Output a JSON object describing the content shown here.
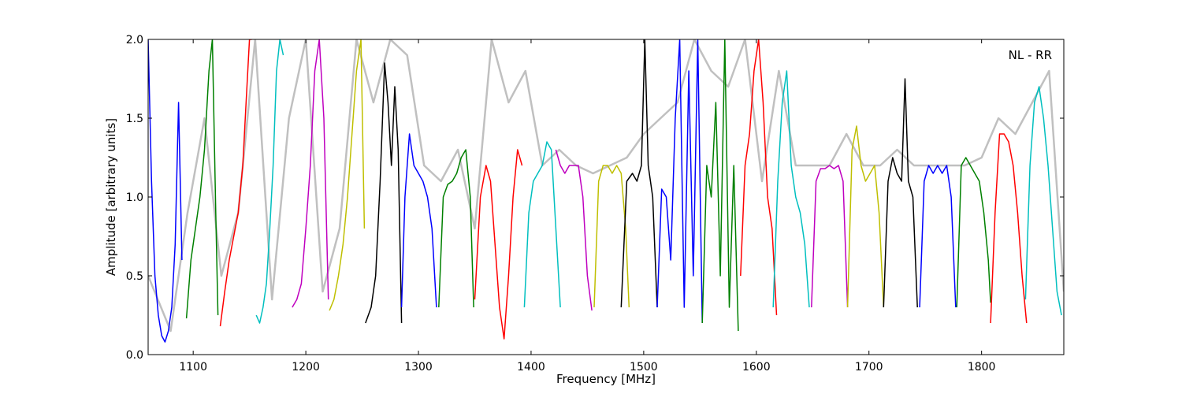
{
  "chart_data": {
    "type": "line",
    "title": "",
    "xlabel": "Frequency [MHz]",
    "ylabel": "Amplitude [arbitrary units]",
    "annotation": "NL - RR",
    "xlim": [
      1060,
      1873
    ],
    "ylim": [
      0.0,
      2.0
    ],
    "x_ticks": [
      1100,
      1200,
      1300,
      1400,
      1500,
      1600,
      1700,
      1800
    ],
    "x_tick_labels": [
      "1100",
      "1200",
      "1300",
      "1400",
      "1500",
      "1600",
      "1700",
      "1800"
    ],
    "y_ticks": [
      0.0,
      0.5,
      1.0,
      1.5,
      2.0
    ],
    "y_tick_labels": [
      "0.0",
      "0.5",
      "1.0",
      "1.5",
      "2.0"
    ],
    "grid": false,
    "legend": "none",
    "background_color": "#c0c0c0",
    "background_series": [
      {
        "x": [
          1060,
          1080,
          1095,
          1110,
          1125,
          1140,
          1155,
          1170,
          1185,
          1200,
          1215,
          1230,
          1245,
          1260,
          1275,
          1290,
          1305,
          1320,
          1335,
          1350,
          1365,
          1380,
          1395,
          1410,
          1425,
          1440,
          1455,
          1470,
          1485,
          1500,
          1515,
          1530,
          1545,
          1560,
          1575,
          1590,
          1605,
          1620,
          1635,
          1650,
          1665,
          1680,
          1695,
          1710,
          1725,
          1740,
          1755,
          1770,
          1785,
          1800,
          1815,
          1830,
          1845,
          1860,
          1873
        ],
        "y": [
          0.5,
          0.15,
          0.9,
          1.5,
          0.5,
          0.9,
          2.0,
          0.35,
          1.5,
          2.0,
          0.4,
          0.8,
          2.0,
          1.6,
          2.0,
          1.9,
          1.2,
          1.1,
          1.3,
          0.8,
          2.0,
          1.6,
          1.8,
          1.2,
          1.3,
          1.2,
          1.15,
          1.2,
          1.25,
          1.4,
          1.5,
          1.6,
          2.0,
          1.8,
          1.7,
          2.0,
          1.1,
          1.8,
          1.2,
          1.2,
          1.2,
          1.4,
          1.2,
          1.2,
          1.3,
          1.2,
          1.2,
          1.2,
          1.2,
          1.25,
          1.5,
          1.4,
          1.6,
          1.8,
          0.4
        ]
      }
    ],
    "series": [
      {
        "color": "#0000ff",
        "x": [
          1060,
          1063,
          1066,
          1069,
          1072,
          1075,
          1078,
          1081,
          1084,
          1087,
          1090
        ],
        "y": [
          2.0,
          1.1,
          0.5,
          0.25,
          0.12,
          0.08,
          0.15,
          0.3,
          0.7,
          1.6,
          0.6
        ]
      },
      {
        "color": "#008000",
        "x": [
          1094,
          1098,
          1102,
          1106,
          1110,
          1114,
          1117,
          1120,
          1122
        ],
        "y": [
          0.23,
          0.6,
          0.8,
          1.0,
          1.3,
          1.8,
          2.0,
          0.9,
          0.25
        ]
      },
      {
        "color": "#ff0000",
        "x": [
          1124,
          1128,
          1132,
          1136,
          1140,
          1144,
          1147,
          1150,
          1152
        ],
        "y": [
          0.18,
          0.4,
          0.6,
          0.75,
          0.9,
          1.2,
          1.6,
          2.0,
          2.0
        ]
      },
      {
        "color": "#00bfbf",
        "x": [
          1156,
          1159,
          1162,
          1165,
          1168,
          1171,
          1174,
          1177,
          1180
        ],
        "y": [
          0.25,
          0.2,
          0.3,
          0.45,
          0.8,
          1.2,
          1.8,
          2.0,
          1.9
        ]
      },
      {
        "color": "#bf00bf",
        "x": [
          1188,
          1192,
          1196,
          1200,
          1204,
          1208,
          1212,
          1216,
          1220
        ],
        "y": [
          0.3,
          0.35,
          0.45,
          0.8,
          1.2,
          1.8,
          2.0,
          1.5,
          0.35
        ]
      },
      {
        "color": "#bfbf00",
        "x": [
          1221,
          1225,
          1229,
          1233,
          1237,
          1241,
          1245,
          1249,
          1252
        ],
        "y": [
          0.28,
          0.35,
          0.5,
          0.7,
          1.0,
          1.4,
          1.8,
          2.0,
          0.8
        ]
      },
      {
        "color": "#000000",
        "x": [
          1253,
          1258,
          1262,
          1266,
          1270,
          1273,
          1276,
          1279,
          1282,
          1285
        ],
        "y": [
          0.2,
          0.3,
          0.5,
          1.1,
          1.85,
          1.6,
          1.2,
          1.7,
          1.3,
          0.2
        ]
      },
      {
        "color": "#0000ff",
        "x": [
          1285,
          1288,
          1292,
          1296,
          1300,
          1304,
          1308,
          1312,
          1316
        ],
        "y": [
          0.3,
          1.0,
          1.4,
          1.2,
          1.15,
          1.1,
          1.0,
          0.8,
          0.3
        ]
      },
      {
        "color": "#008000",
        "x": [
          1318,
          1322,
          1326,
          1330,
          1334,
          1338,
          1342,
          1346,
          1349
        ],
        "y": [
          0.3,
          1.0,
          1.08,
          1.1,
          1.15,
          1.25,
          1.3,
          1.0,
          0.3
        ]
      },
      {
        "color": "#ff0000",
        "x": [
          1350,
          1355,
          1360,
          1364,
          1368,
          1372,
          1376,
          1380,
          1384,
          1388,
          1392
        ],
        "y": [
          0.35,
          1.0,
          1.2,
          1.1,
          0.7,
          0.3,
          0.1,
          0.5,
          1.0,
          1.3,
          1.2
        ]
      },
      {
        "color": "#00bfbf",
        "x": [
          1394,
          1398,
          1402,
          1406,
          1410,
          1414,
          1418,
          1422,
          1426
        ],
        "y": [
          0.3,
          0.9,
          1.1,
          1.15,
          1.2,
          1.35,
          1.3,
          0.8,
          0.3
        ]
      },
      {
        "color": "#bf00bf",
        "x": [
          1422,
          1426,
          1430,
          1434,
          1438,
          1442,
          1446,
          1450,
          1454
        ],
        "y": [
          1.3,
          1.2,
          1.15,
          1.2,
          1.2,
          1.2,
          1.0,
          0.5,
          0.28
        ]
      },
      {
        "color": "#bfbf00",
        "x": [
          1456,
          1460,
          1464,
          1468,
          1472,
          1476,
          1480,
          1484,
          1487
        ],
        "y": [
          0.3,
          1.1,
          1.2,
          1.2,
          1.15,
          1.2,
          1.15,
          0.8,
          0.3
        ]
      },
      {
        "color": "#000000",
        "x": [
          1480,
          1485,
          1490,
          1494,
          1498,
          1501,
          1504,
          1508,
          1512
        ],
        "y": [
          0.3,
          1.1,
          1.15,
          1.1,
          1.2,
          2.0,
          1.2,
          1.0,
          0.3
        ]
      },
      {
        "color": "#0000ff",
        "x": [
          1512,
          1516,
          1520,
          1524,
          1528,
          1532,
          1536,
          1540,
          1544,
          1548,
          1552
        ],
        "y": [
          0.3,
          1.05,
          1.0,
          0.6,
          1.5,
          2.0,
          0.3,
          1.8,
          0.5,
          2.0,
          0.2
        ]
      },
      {
        "color": "#008000",
        "x": [
          1552,
          1556,
          1560,
          1564,
          1568,
          1572,
          1576,
          1580,
          1584
        ],
        "y": [
          0.2,
          1.2,
          1.0,
          1.6,
          0.5,
          2.0,
          0.3,
          1.2,
          0.15
        ]
      },
      {
        "color": "#ff0000",
        "x": [
          1586,
          1590,
          1594,
          1598,
          1602,
          1606,
          1610,
          1614,
          1618
        ],
        "y": [
          0.5,
          1.2,
          1.4,
          1.8,
          2.0,
          1.6,
          1.0,
          0.8,
          0.25
        ]
      },
      {
        "color": "#00bfbf",
        "x": [
          1615,
          1619,
          1623,
          1627,
          1631,
          1635,
          1639,
          1643,
          1647
        ],
        "y": [
          0.3,
          1.1,
          1.6,
          1.8,
          1.2,
          1.0,
          0.9,
          0.7,
          0.3
        ]
      },
      {
        "color": "#bf00bf",
        "x": [
          1649,
          1653,
          1657,
          1661,
          1665,
          1669,
          1673,
          1677,
          1681
        ],
        "y": [
          0.3,
          1.1,
          1.18,
          1.18,
          1.2,
          1.18,
          1.2,
          1.1,
          0.3
        ]
      },
      {
        "color": "#bfbf00",
        "x": [
          1681,
          1685,
          1689,
          1693,
          1697,
          1701,
          1705,
          1709,
          1713
        ],
        "y": [
          0.3,
          1.3,
          1.45,
          1.2,
          1.1,
          1.15,
          1.2,
          0.9,
          0.3
        ]
      },
      {
        "color": "#000000",
        "x": [
          1713,
          1717,
          1721,
          1725,
          1729,
          1732,
          1735,
          1739,
          1743
        ],
        "y": [
          0.3,
          1.1,
          1.25,
          1.15,
          1.1,
          1.75,
          1.1,
          1.0,
          0.3
        ]
      },
      {
        "color": "#0000ff",
        "x": [
          1745,
          1749,
          1753,
          1757,
          1761,
          1765,
          1769,
          1773,
          1777
        ],
        "y": [
          0.3,
          1.1,
          1.2,
          1.15,
          1.2,
          1.15,
          1.2,
          1.0,
          0.3
        ]
      },
      {
        "color": "#008000",
        "x": [
          1778,
          1782,
          1786,
          1790,
          1794,
          1798,
          1802,
          1806,
          1808
        ],
        "y": [
          0.3,
          1.2,
          1.25,
          1.2,
          1.15,
          1.1,
          0.9,
          0.6,
          0.33
        ]
      },
      {
        "color": "#ff0000",
        "x": [
          1808,
          1812,
          1816,
          1820,
          1824,
          1828,
          1832,
          1836,
          1840
        ],
        "y": [
          0.2,
          0.9,
          1.4,
          1.4,
          1.35,
          1.2,
          0.9,
          0.5,
          0.2
        ]
      },
      {
        "color": "#00bfbf",
        "x": [
          1839,
          1843,
          1847,
          1851,
          1855,
          1859,
          1863,
          1867,
          1871
        ],
        "y": [
          0.35,
          1.2,
          1.6,
          1.7,
          1.5,
          1.2,
          0.8,
          0.4,
          0.25
        ]
      }
    ]
  }
}
